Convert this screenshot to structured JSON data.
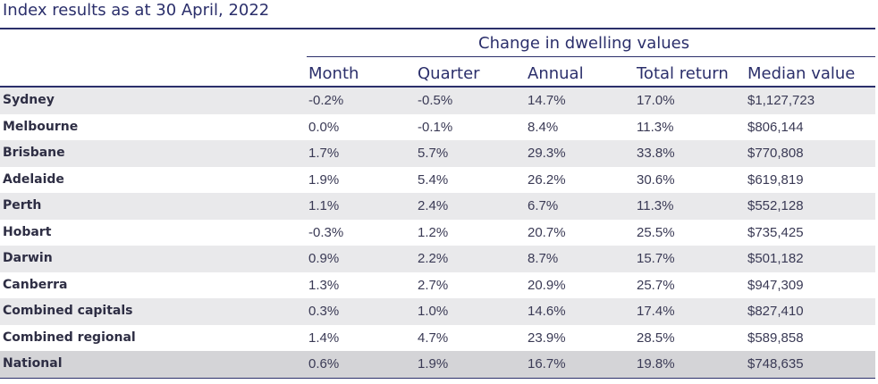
{
  "title": "Index results as at 30 April, 2022",
  "group_header": "Change in dwelling values",
  "columns": [
    "Month",
    "Quarter",
    "Annual",
    "Total return",
    "Median value"
  ],
  "rows": [
    {
      "region": "Sydney",
      "month": "-0.2%",
      "quarter": "-0.5%",
      "annual": "14.7%",
      "total_return": "17.0%",
      "median": "$1,127,723"
    },
    {
      "region": "Melbourne",
      "month": "0.0%",
      "quarter": "-0.1%",
      "annual": "8.4%",
      "total_return": "11.3%",
      "median": "$806,144"
    },
    {
      "region": "Brisbane",
      "month": "1.7%",
      "quarter": "5.7%",
      "annual": "29.3%",
      "total_return": "33.8%",
      "median": "$770,808"
    },
    {
      "region": "Adelaide",
      "month": "1.9%",
      "quarter": "5.4%",
      "annual": "26.2%",
      "total_return": "30.6%",
      "median": "$619,819"
    },
    {
      "region": "Perth",
      "month": "1.1%",
      "quarter": "2.4%",
      "annual": "6.7%",
      "total_return": "11.3%",
      "median": "$552,128"
    },
    {
      "region": "Hobart",
      "month": "-0.3%",
      "quarter": "1.2%",
      "annual": "20.7%",
      "total_return": "25.5%",
      "median": "$735,425"
    },
    {
      "region": "Darwin",
      "month": "0.9%",
      "quarter": "2.2%",
      "annual": "8.7%",
      "total_return": "15.7%",
      "median": "$501,182"
    },
    {
      "region": "Canberra",
      "month": "1.3%",
      "quarter": "2.7%",
      "annual": "20.9%",
      "total_return": "25.7%",
      "median": "$947,309"
    },
    {
      "region": "Combined capitals",
      "month": "0.3%",
      "quarter": "1.0%",
      "annual": "14.6%",
      "total_return": "17.4%",
      "median": "$827,410"
    },
    {
      "region": "Combined regional",
      "month": "1.4%",
      "quarter": "4.7%",
      "annual": "23.9%",
      "total_return": "28.5%",
      "median": "$589,858"
    },
    {
      "region": "National",
      "month": "0.6%",
      "quarter": "1.9%",
      "annual": "16.7%",
      "total_return": "19.8%",
      "median": "$748,635"
    }
  ]
}
